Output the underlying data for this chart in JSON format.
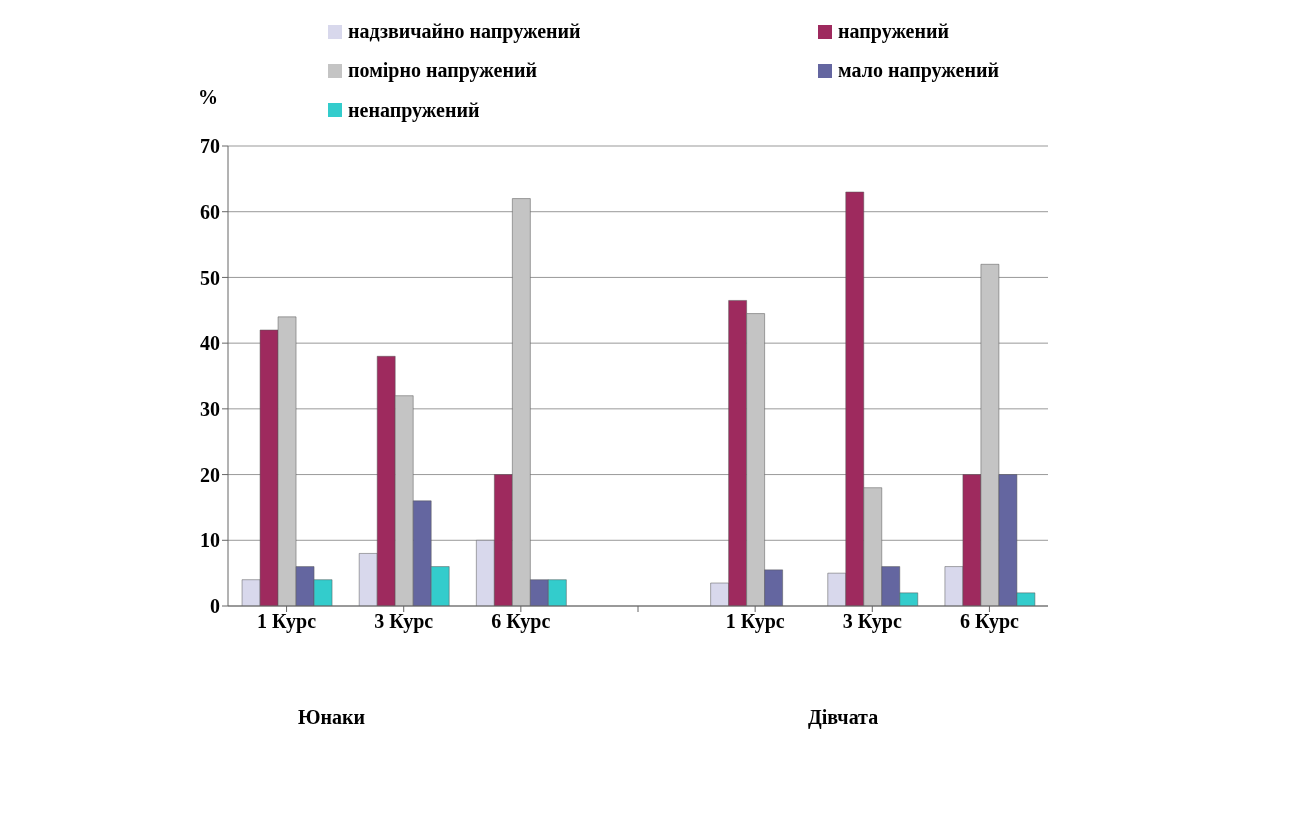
{
  "chart_data": {
    "type": "bar",
    "ylabel": "%",
    "categories": [
      "1 Курс",
      "3 Курс",
      "6 Курс",
      null,
      "1 Курс",
      "3 Курс",
      "6 Курс"
    ],
    "series": [
      {
        "name": "надзвичайно напружений",
        "color": "#d8d8ec",
        "values": [
          4,
          8,
          10,
          null,
          3.5,
          5,
          6
        ]
      },
      {
        "name": "напружений",
        "color": "#9e2a5e",
        "values": [
          42,
          38,
          20,
          null,
          46.5,
          63,
          20
        ]
      },
      {
        "name": "помірно напружений",
        "color": "#c4c4c4",
        "values": [
          44,
          32,
          62,
          null,
          44.5,
          18,
          52
        ]
      },
      {
        "name": "мало напружений",
        "color": "#6466a0",
        "values": [
          6,
          16,
          4,
          null,
          5.5,
          6,
          20
        ]
      },
      {
        "name": "ненапружений",
        "color": "#33cccc",
        "values": [
          4,
          6,
          4,
          null,
          0,
          2,
          2
        ]
      }
    ],
    "ylim": [
      0,
      70
    ],
    "yticks": [
      0,
      10,
      20,
      30,
      40,
      50,
      60,
      70
    ],
    "grid": "y",
    "legend": "top",
    "annotations": [
      "Юнаки",
      "Дівчата"
    ]
  }
}
